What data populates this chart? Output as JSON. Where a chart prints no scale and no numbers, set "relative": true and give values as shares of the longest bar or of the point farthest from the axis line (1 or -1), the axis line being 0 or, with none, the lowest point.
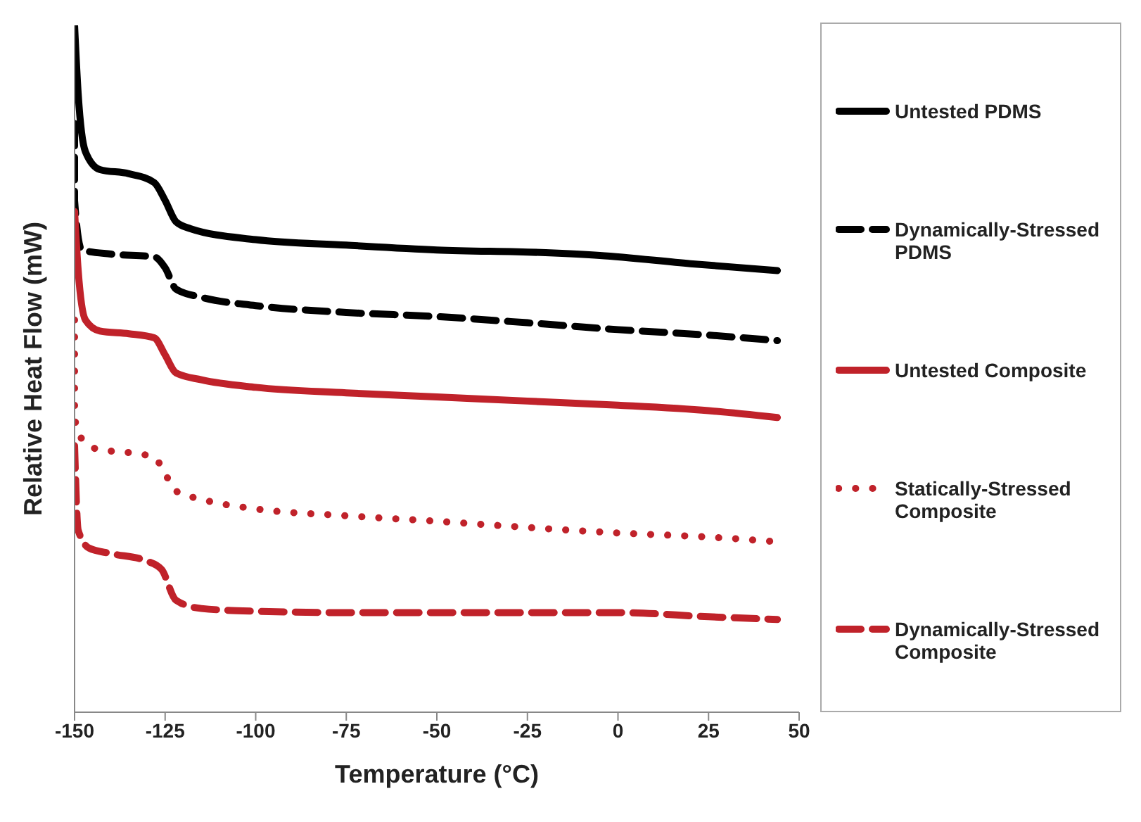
{
  "chart_data": {
    "type": "line",
    "xlabel": "Temperature (°C)",
    "ylabel": "Relative Heat Flow (mW)",
    "relative": true,
    "xlim": [
      -150,
      50
    ],
    "xticks": [
      -150,
      -125,
      -100,
      -75,
      -50,
      -25,
      0,
      25,
      50
    ],
    "legend": "right",
    "grid": false,
    "marker": "none",
    "series": [
      {
        "name": "Untested PDMS",
        "color": "#000000",
        "line_style": "solid",
        "x": [
          -150,
          -149,
          -147,
          -143,
          -135,
          -128,
          -125,
          -122,
          -118,
          -100,
          -75,
          -50,
          -20,
          -5,
          20,
          44
        ],
        "values": [
          1.0,
          0.9,
          0.816,
          0.79,
          0.784,
          0.771,
          0.745,
          0.714,
          0.704,
          0.688,
          0.68,
          0.673,
          0.669,
          0.665,
          0.653,
          0.643
        ]
      },
      {
        "name": "Dynamically-Stressed PDMS",
        "color": "#000000",
        "line_style": "dashed",
        "x": [
          -150,
          -150,
          -148,
          -140,
          -128,
          -125,
          -122,
          -115,
          -100,
          -75,
          -50,
          -25,
          0,
          25,
          44
        ],
        "values": [
          0.857,
          0.745,
          0.673,
          0.667,
          0.663,
          0.647,
          0.616,
          0.604,
          0.592,
          0.582,
          0.576,
          0.567,
          0.557,
          0.549,
          0.541
        ]
      },
      {
        "name": "Untested Composite",
        "color": "#c0222a",
        "line_style": "solid",
        "x": [
          -150,
          -149,
          -147,
          -143,
          -135,
          -128,
          -125,
          -122,
          -115,
          -100,
          -75,
          -50,
          -25,
          0,
          25,
          44
        ],
        "values": [
          0.729,
          0.643,
          0.571,
          0.555,
          0.551,
          0.545,
          0.52,
          0.494,
          0.484,
          0.473,
          0.465,
          0.459,
          0.453,
          0.447,
          0.439,
          0.429
        ]
      },
      {
        "name": "Statically-Stressed Composite",
        "color": "#c0222a",
        "line_style": "dotted",
        "x": [
          -150,
          -150,
          -148,
          -143,
          -135,
          -128,
          -125,
          -122,
          -115,
          -100,
          -75,
          -50,
          -25,
          0,
          25,
          42
        ],
        "values": [
          0.571,
          0.429,
          0.398,
          0.382,
          0.378,
          0.371,
          0.347,
          0.322,
          0.31,
          0.296,
          0.286,
          0.278,
          0.269,
          0.261,
          0.255,
          0.249
        ]
      },
      {
        "name": "Dynamically-Stressed Composite",
        "color": "#c0222a",
        "line_style": "dashed",
        "x": [
          -150,
          -149,
          -146,
          -140,
          -130,
          -126,
          -122,
          -115,
          -100,
          -75,
          -50,
          -25,
          0,
          25,
          44
        ],
        "values": [
          0.388,
          0.265,
          0.239,
          0.231,
          0.22,
          0.208,
          0.163,
          0.151,
          0.147,
          0.145,
          0.145,
          0.145,
          0.145,
          0.139,
          0.135
        ]
      }
    ]
  }
}
